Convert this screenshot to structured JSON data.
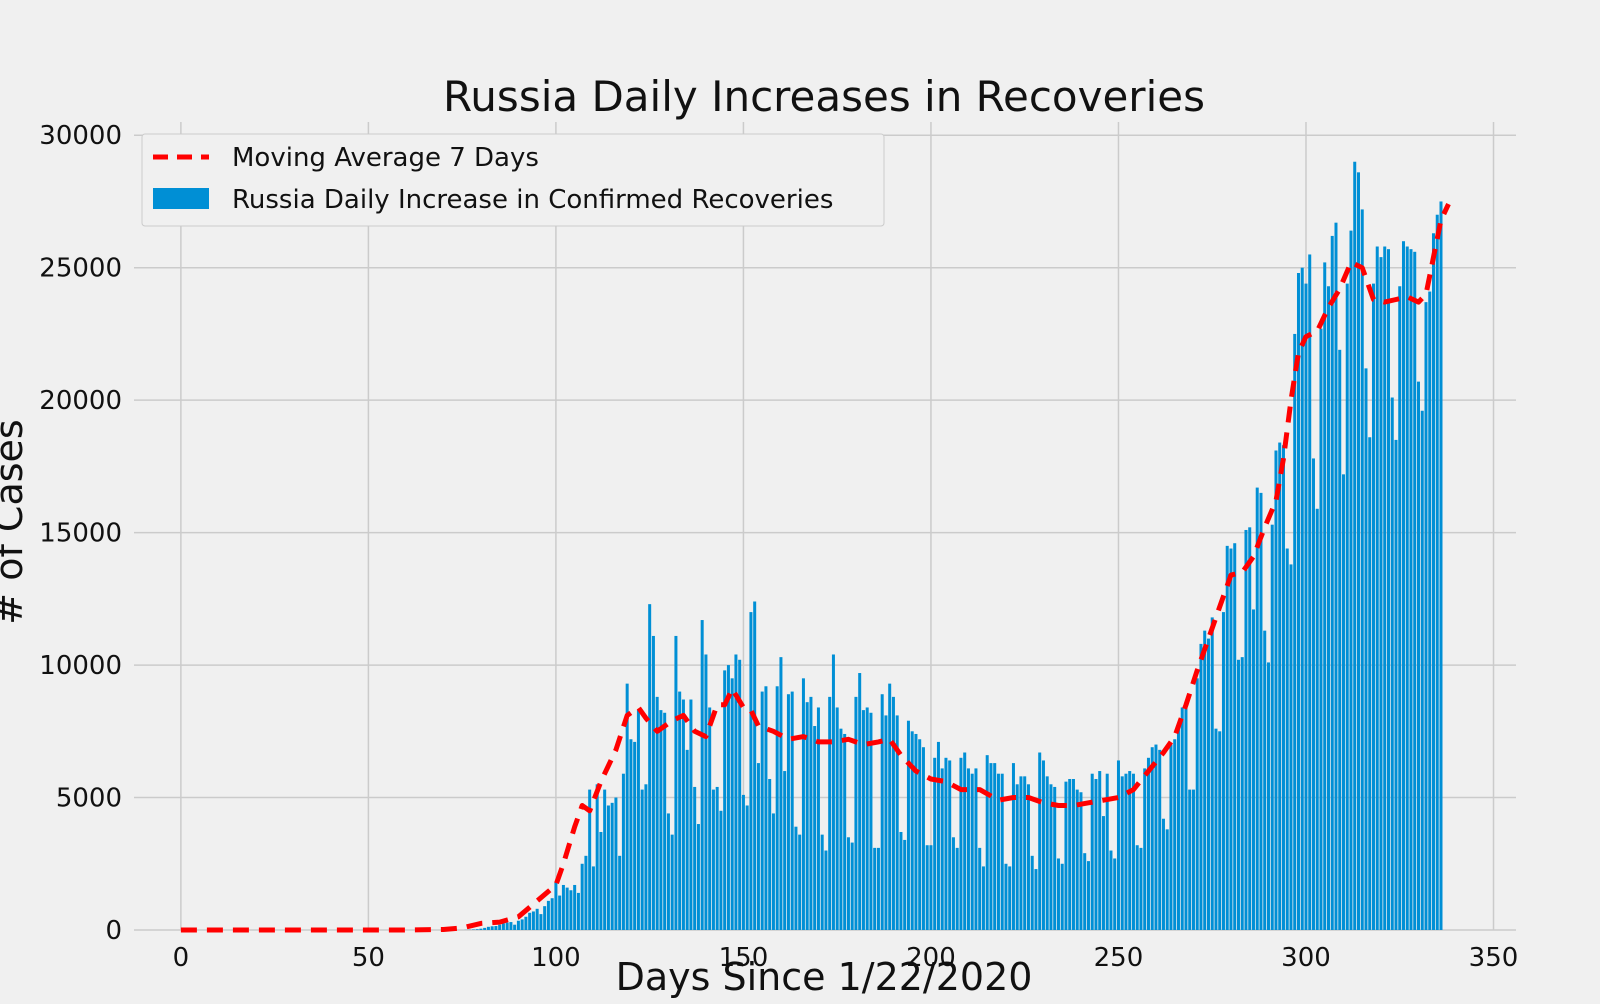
{
  "chart_data": {
    "type": "bar",
    "title": "Russia Daily Increases in Recoveries",
    "xlabel": "Days Since 1/22/2020",
    "ylabel": "# of Cases",
    "xlim": [
      -12.5,
      356
    ],
    "ylim": [
      0,
      30500
    ],
    "xticks": [
      0,
      50,
      100,
      150,
      200,
      250,
      300,
      350
    ],
    "yticks": [
      0,
      5000,
      10000,
      15000,
      20000,
      25000,
      30000
    ],
    "grid": true,
    "legend": {
      "position": "top-left",
      "entries": [
        "Moving Average 7 Days",
        "Russia Daily Increase in Confirmed Recoveries"
      ]
    },
    "colors": {
      "bars": "#008fd5",
      "moving_average": "#ff0000",
      "background": "#f0f0f0",
      "grid": "#cbcbcb"
    },
    "series": [
      {
        "name": "Russia Daily Increase in Confirmed Recoveries",
        "kind": "bar",
        "x_start": 0,
        "values": [
          0,
          0,
          0,
          0,
          0,
          0,
          0,
          0,
          0,
          0,
          0,
          0,
          0,
          0,
          0,
          0,
          0,
          0,
          0,
          0,
          0,
          0,
          0,
          0,
          0,
          0,
          0,
          0,
          0,
          0,
          0,
          0,
          0,
          0,
          0,
          0,
          0,
          0,
          0,
          0,
          0,
          0,
          0,
          0,
          0,
          0,
          0,
          0,
          0,
          0,
          0,
          0,
          0,
          0,
          0,
          0,
          0,
          0,
          0,
          0,
          0,
          0,
          0,
          0,
          0,
          0,
          0,
          0,
          0,
          0,
          0,
          0,
          0,
          0,
          0,
          0,
          5,
          10,
          20,
          30,
          50,
          80,
          120,
          140,
          150,
          200,
          250,
          280,
          300,
          200,
          350,
          400,
          500,
          650,
          700,
          800,
          600,
          900,
          1100,
          1200,
          1800,
          1300,
          1700,
          1600,
          1500,
          1700,
          1400,
          2500,
          2800,
          5300,
          2400,
          5500,
          3700,
          5300,
          4700,
          4800,
          5000,
          2800,
          5900,
          9300,
          7200,
          7100,
          8300,
          5300,
          5500,
          12300,
          11100,
          8800,
          8300,
          8200,
          4400,
          3600,
          11100,
          9000,
          8700,
          6800,
          8700,
          5400,
          4000,
          11700,
          10400,
          8400,
          5300,
          5400,
          4500,
          9800,
          10000,
          9500,
          10400,
          10200,
          5100,
          4700,
          12000,
          12400,
          6300,
          9000,
          9200,
          5700,
          4400,
          9200,
          10300,
          6000,
          8900,
          9000,
          3900,
          3600,
          9500,
          8600,
          8800,
          7700,
          8400,
          3600,
          3000,
          8800,
          10400,
          8400,
          7600,
          7400,
          3500,
          3300,
          8800,
          9700,
          8300,
          8400,
          8200,
          3100,
          3100,
          8900,
          8100,
          9300,
          8800,
          8100,
          3700,
          3400,
          7900,
          7500,
          7400,
          7200,
          6900,
          3200,
          3200,
          6500,
          7100,
          6100,
          6500,
          6400,
          3500,
          3100,
          6500,
          6700,
          6100,
          5900,
          6100,
          3100,
          2400,
          6600,
          6300,
          6300,
          5900,
          5900,
          2500,
          2400,
          6300,
          5500,
          5800,
          5800,
          5500,
          2800,
          2300,
          6700,
          6400,
          5800,
          5500,
          5400,
          2700,
          2500,
          5600,
          5700,
          5700,
          5300,
          5200,
          2900,
          2600,
          5900,
          5700,
          6000,
          4300,
          5900,
          3000,
          2700,
          6400,
          5800,
          5900,
          6000,
          5900,
          3200,
          3100,
          6100,
          6500,
          6900,
          7000,
          6800,
          4200,
          3800,
          7000,
          7200,
          7700,
          8400,
          8400,
          5300,
          5300,
          9500,
          10800,
          11300,
          11000,
          11800,
          7600,
          7500,
          12000,
          14500,
          14400,
          14600,
          10200,
          10300,
          15100,
          15200,
          12100,
          16700,
          16500,
          11300,
          10100,
          15300,
          18100,
          18400,
          18300,
          14400,
          13800,
          22500,
          24800,
          25000,
          24400,
          25500,
          17800,
          15900,
          22700,
          25200,
          24300,
          26200,
          26700,
          21900,
          17200,
          24400,
          26400,
          29000,
          28600,
          27200,
          21200,
          18600,
          24400,
          25800,
          25400,
          25800,
          25700,
          20100,
          18500,
          24300,
          26000,
          25800,
          25700,
          25600,
          20700,
          19600,
          23700,
          24100,
          26300,
          27000,
          27500
        ]
      },
      {
        "name": "Moving Average 7 Days",
        "kind": "line",
        "style": "dashed",
        "points": [
          [
            0,
            0
          ],
          [
            60,
            0
          ],
          [
            70,
            20
          ],
          [
            75,
            80
          ],
          [
            80,
            250
          ],
          [
            85,
            300
          ],
          [
            90,
            500
          ],
          [
            95,
            1100
          ],
          [
            100,
            1700
          ],
          [
            102,
            2500
          ],
          [
            105,
            3900
          ],
          [
            107,
            4700
          ],
          [
            109,
            4500
          ],
          [
            112,
            5600
          ],
          [
            116,
            6800
          ],
          [
            119,
            8100
          ],
          [
            122,
            8400
          ],
          [
            124,
            8000
          ],
          [
            127,
            7500
          ],
          [
            131,
            7900
          ],
          [
            134,
            8100
          ],
          [
            137,
            7500
          ],
          [
            140,
            7300
          ],
          [
            143,
            8500
          ],
          [
            145,
            8500
          ],
          [
            147,
            9100
          ],
          [
            150,
            8400
          ],
          [
            152,
            8300
          ],
          [
            154,
            7700
          ],
          [
            158,
            7500
          ],
          [
            162,
            7200
          ],
          [
            166,
            7300
          ],
          [
            170,
            7100
          ],
          [
            174,
            7100
          ],
          [
            178,
            7200
          ],
          [
            182,
            7000
          ],
          [
            186,
            7100
          ],
          [
            189,
            7200
          ],
          [
            192,
            6600
          ],
          [
            196,
            6000
          ],
          [
            200,
            5700
          ],
          [
            204,
            5600
          ],
          [
            208,
            5300
          ],
          [
            213,
            5300
          ],
          [
            218,
            4900
          ],
          [
            222,
            5000
          ],
          [
            226,
            5000
          ],
          [
            230,
            4800
          ],
          [
            234,
            4700
          ],
          [
            238,
            4700
          ],
          [
            242,
            4800
          ],
          [
            246,
            4900
          ],
          [
            250,
            5000
          ],
          [
            254,
            5300
          ],
          [
            258,
            6000
          ],
          [
            262,
            6700
          ],
          [
            265,
            7300
          ],
          [
            268,
            8500
          ],
          [
            271,
            9800
          ],
          [
            274,
            11000
          ],
          [
            277,
            12200
          ],
          [
            280,
            13400
          ],
          [
            283,
            13500
          ],
          [
            286,
            14100
          ],
          [
            289,
            15200
          ],
          [
            292,
            16200
          ],
          [
            294,
            17800
          ],
          [
            296,
            20000
          ],
          [
            298,
            21800
          ],
          [
            300,
            22400
          ],
          [
            303,
            22600
          ],
          [
            306,
            23500
          ],
          [
            309,
            24200
          ],
          [
            312,
            25200
          ],
          [
            315,
            25000
          ],
          [
            318,
            23800
          ],
          [
            321,
            23700
          ],
          [
            324,
            23800
          ],
          [
            327,
            23900
          ],
          [
            330,
            23700
          ],
          [
            332,
            24000
          ],
          [
            334,
            25400
          ],
          [
            336,
            26800
          ],
          [
            338,
            27400
          ]
        ]
      }
    ]
  }
}
